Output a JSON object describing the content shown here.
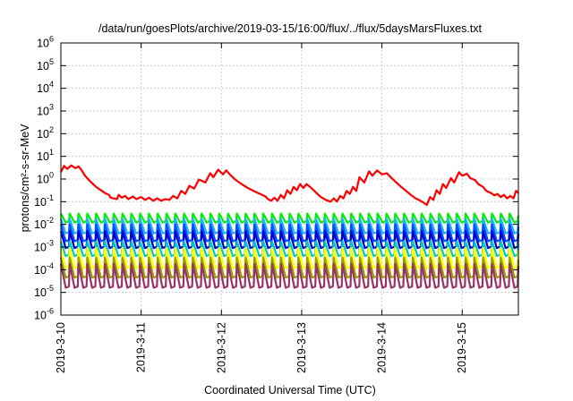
{
  "chart_data": {
    "type": "line",
    "title": "/data/run/goesPlots/archive/2019-03-15/16:00/flux/../flux/5daysMarsFluxes.txt",
    "xlabel": "Coordinated Universal Time (UTC)",
    "ylabel": "protons/cm²-s-sr-MeV",
    "y_scale": "log",
    "ylim": [
      1e-06,
      1000000.0
    ],
    "xlim": [
      0,
      5.7
    ],
    "x_ticks": [
      {
        "value": 0,
        "label": "2019-3-10"
      },
      {
        "value": 1,
        "label": "2019-3-11"
      },
      {
        "value": 2,
        "label": "2019-3-12"
      },
      {
        "value": 3,
        "label": "2019-3-13"
      },
      {
        "value": 4,
        "label": "2019-3-14"
      },
      {
        "value": 5,
        "label": "2019-3-15"
      }
    ],
    "y_tick_exponents": [
      -6,
      -5,
      -4,
      -3,
      -2,
      -1,
      0,
      1,
      2,
      3,
      4,
      5,
      6
    ],
    "y_tick_base": "10",
    "grid": true,
    "legend": "none",
    "series": [
      {
        "color": "#ff0000",
        "points": [
          [
            0.0,
            2.0
          ],
          [
            0.04,
            3.8
          ],
          [
            0.08,
            2.8
          ],
          [
            0.13,
            4.0
          ],
          [
            0.18,
            3.0
          ],
          [
            0.22,
            3.6
          ],
          [
            0.26,
            2.4
          ],
          [
            0.3,
            1.4
          ],
          [
            0.35,
            0.9
          ],
          [
            0.4,
            0.6
          ],
          [
            0.45,
            0.42
          ],
          [
            0.5,
            0.32
          ],
          [
            0.55,
            0.24
          ],
          [
            0.6,
            0.2
          ],
          [
            0.62,
            0.15
          ],
          [
            0.7,
            0.13
          ],
          [
            0.72,
            0.2
          ],
          [
            0.76,
            0.15
          ],
          [
            0.8,
            0.18
          ],
          [
            0.84,
            0.13
          ],
          [
            0.9,
            0.17
          ],
          [
            0.94,
            0.13
          ],
          [
            1.0,
            0.16
          ],
          [
            1.05,
            0.12
          ],
          [
            1.1,
            0.15
          ],
          [
            1.15,
            0.11
          ],
          [
            1.2,
            0.14
          ],
          [
            1.25,
            0.11
          ],
          [
            1.3,
            0.13
          ],
          [
            1.35,
            0.12
          ],
          [
            1.4,
            0.18
          ],
          [
            1.45,
            0.14
          ],
          [
            1.5,
            0.3
          ],
          [
            1.55,
            0.22
          ],
          [
            1.6,
            0.5
          ],
          [
            1.66,
            0.38
          ],
          [
            1.72,
            0.95
          ],
          [
            1.8,
            0.7
          ],
          [
            1.86,
            1.8
          ],
          [
            1.9,
            1.2
          ],
          [
            1.96,
            2.6
          ],
          [
            2.02,
            1.6
          ],
          [
            2.06,
            2.4
          ],
          [
            2.12,
            1.4
          ],
          [
            2.18,
            0.9
          ],
          [
            2.25,
            0.6
          ],
          [
            2.32,
            0.42
          ],
          [
            2.4,
            0.3
          ],
          [
            2.48,
            0.22
          ],
          [
            2.55,
            0.17
          ],
          [
            2.58,
            0.13
          ],
          [
            2.62,
            0.11
          ],
          [
            2.66,
            0.15
          ],
          [
            2.7,
            0.11
          ],
          [
            2.74,
            0.2
          ],
          [
            2.78,
            0.14
          ],
          [
            2.82,
            0.32
          ],
          [
            2.86,
            0.22
          ],
          [
            2.9,
            0.45
          ],
          [
            2.94,
            0.32
          ],
          [
            2.98,
            0.6
          ],
          [
            3.02,
            0.4
          ],
          [
            3.06,
            0.6
          ],
          [
            3.12,
            0.4
          ],
          [
            3.18,
            0.25
          ],
          [
            3.24,
            0.16
          ],
          [
            3.3,
            0.12
          ],
          [
            3.36,
            0.1
          ],
          [
            3.4,
            0.14
          ],
          [
            3.44,
            0.1
          ],
          [
            3.48,
            0.18
          ],
          [
            3.52,
            0.14
          ],
          [
            3.56,
            0.3
          ],
          [
            3.6,
            0.22
          ],
          [
            3.64,
            0.45
          ],
          [
            3.68,
            0.3
          ],
          [
            3.72,
            1.2
          ],
          [
            3.78,
            0.7
          ],
          [
            3.84,
            2.2
          ],
          [
            3.88,
            1.4
          ],
          [
            3.94,
            2.4
          ],
          [
            4.0,
            1.6
          ],
          [
            4.06,
            1.8
          ],
          [
            4.12,
            1.1
          ],
          [
            4.18,
            0.7
          ],
          [
            4.24,
            0.45
          ],
          [
            4.3,
            0.3
          ],
          [
            4.36,
            0.2
          ],
          [
            4.42,
            0.14
          ],
          [
            4.48,
            0.11
          ],
          [
            4.52,
            0.09
          ],
          [
            4.56,
            0.072
          ],
          [
            4.6,
            0.16
          ],
          [
            4.64,
            0.12
          ],
          [
            4.68,
            0.32
          ],
          [
            4.72,
            0.22
          ],
          [
            4.76,
            0.6
          ],
          [
            4.8,
            0.4
          ],
          [
            4.86,
            1.1
          ],
          [
            4.9,
            0.7
          ],
          [
            4.96,
            2.0
          ],
          [
            5.0,
            1.4
          ],
          [
            5.06,
            1.7
          ],
          [
            5.1,
            1.1
          ],
          [
            5.16,
            0.9
          ],
          [
            5.2,
            0.6
          ],
          [
            5.26,
            0.45
          ],
          [
            5.3,
            0.3
          ],
          [
            5.36,
            0.24
          ],
          [
            5.4,
            0.19
          ],
          [
            5.44,
            0.22
          ],
          [
            5.48,
            0.16
          ],
          [
            5.52,
            0.2
          ],
          [
            5.56,
            0.14
          ],
          [
            5.6,
            0.18
          ],
          [
            5.64,
            0.14
          ],
          [
            5.67,
            0.3
          ],
          [
            5.7,
            0.24
          ]
        ]
      },
      {
        "color": "#00ee00",
        "peak": 0.03,
        "trough": 0.012,
        "pulses": 52
      },
      {
        "color": "#20b0ff",
        "peak": 0.018,
        "trough": 0.004,
        "pulses": 52
      },
      {
        "color": "#0050ff",
        "peak": 0.01,
        "trough": 0.0018,
        "pulses": 52
      },
      {
        "color": "#0000cc",
        "peak": 0.005,
        "trough": 0.0009,
        "pulses": 52
      },
      {
        "color": "#00c8c8",
        "peak": 0.0018,
        "trough": 0.0004,
        "pulses": 52
      },
      {
        "color": "#ffff00",
        "peak": 0.0009,
        "trough": 0.00012,
        "pulses": 52
      },
      {
        "color": "#9aa000",
        "peak": 0.00035,
        "trough": 4.5e-05,
        "pulses": 52
      },
      {
        "color": "#993366",
        "peak": 0.00018,
        "trough": 1.6e-05,
        "pulses": 52
      }
    ]
  }
}
